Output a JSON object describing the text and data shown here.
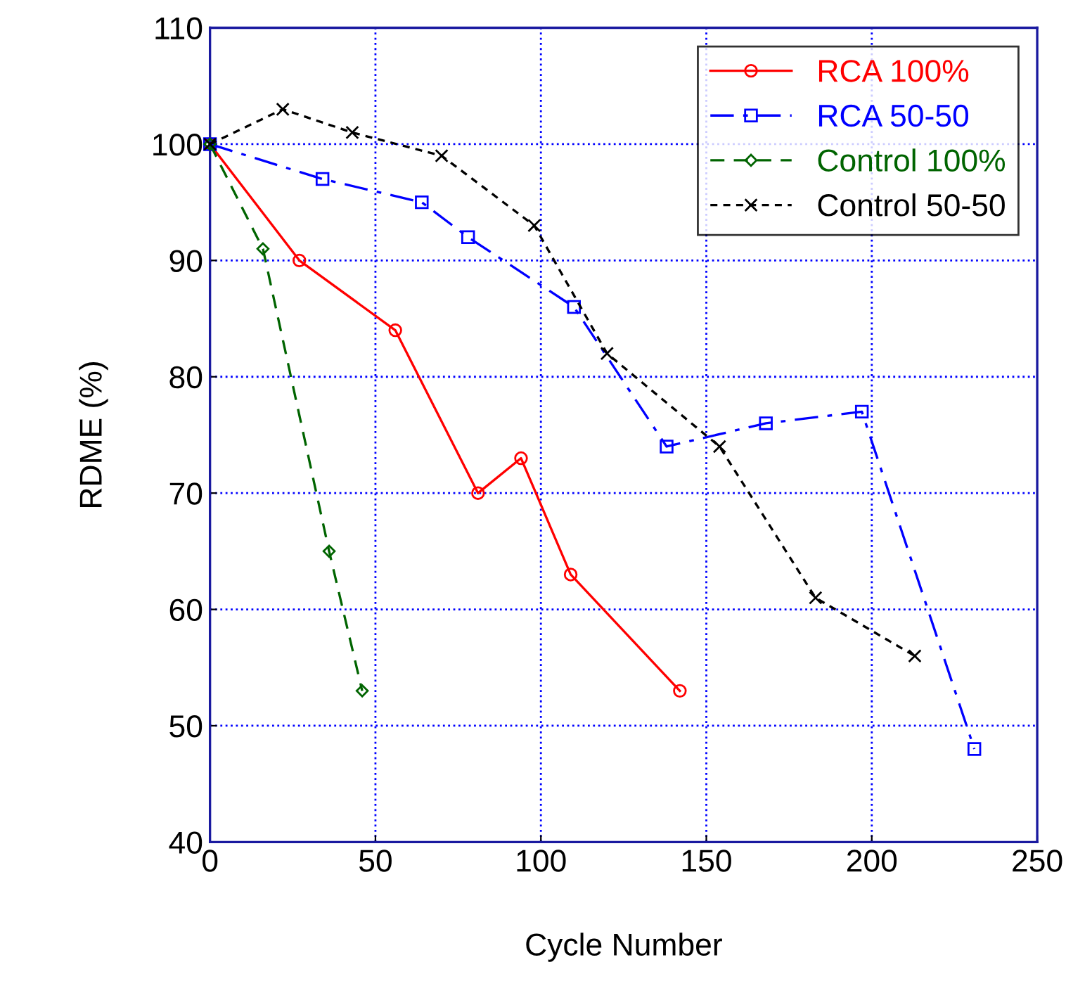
{
  "chart_data": {
    "type": "line",
    "xlabel": "Cycle Number",
    "ylabel": "RDME (%)",
    "xlim": [
      0,
      250
    ],
    "xticks": [
      0,
      50,
      100,
      150,
      200,
      250
    ],
    "ylim": [
      40,
      110
    ],
    "yticks": [
      40,
      50,
      60,
      70,
      80,
      90,
      100,
      110
    ],
    "grid": true,
    "legend": "top right",
    "series": [
      {
        "name": "RCA 100%",
        "color": "#ff0000",
        "marker": "circle",
        "line_style": "solid",
        "x": [
          0,
          27,
          56,
          81,
          94,
          109,
          142
        ],
        "values": [
          100,
          90,
          84,
          70,
          73,
          63,
          53
        ]
      },
      {
        "name": "RCA 50-50",
        "color": "#0000ff",
        "marker": "square",
        "line_style": "dashdot",
        "x": [
          0,
          34,
          64,
          78,
          110,
          138,
          168,
          197,
          231
        ],
        "values": [
          100,
          97,
          95,
          92,
          86,
          74,
          76,
          77,
          48
        ]
      },
      {
        "name": "Control 100%",
        "color": "#006400",
        "marker": "diamond",
        "line_style": "dashed",
        "x": [
          0,
          16,
          36,
          46
        ],
        "values": [
          100,
          91,
          65,
          53
        ]
      },
      {
        "name": "Control 50-50",
        "color": "#000000",
        "marker": "cross",
        "line_style": "dotted",
        "x": [
          0,
          22,
          43,
          70,
          98,
          120,
          154,
          183,
          213
        ],
        "values": [
          100,
          103,
          101,
          99,
          93,
          82,
          74,
          61,
          56
        ]
      }
    ]
  }
}
